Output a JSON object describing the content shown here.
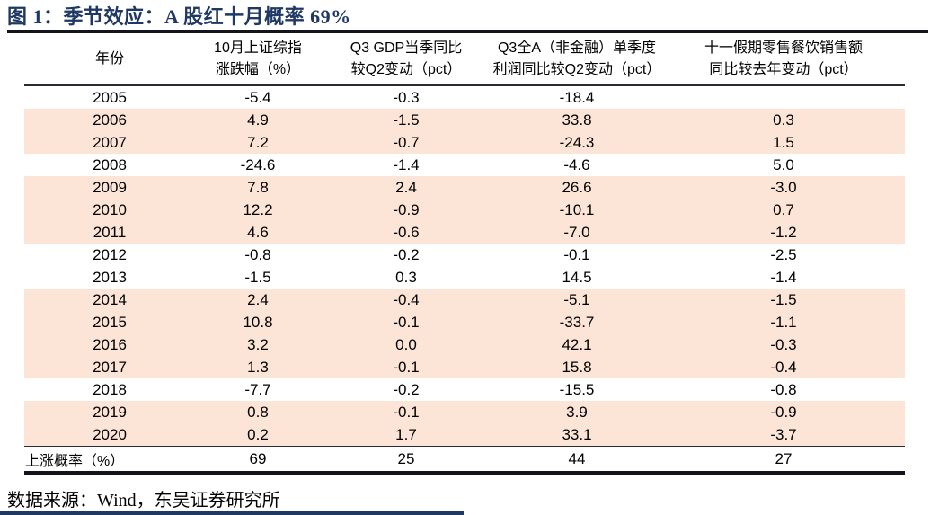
{
  "colors": {
    "navy": "#1f3864",
    "rule_dark": "#14141c",
    "row_highlight": "#fce4d6"
  },
  "chart_data": {
    "type": "table",
    "title": "图 1：季节效应：A 股红十月概率 69%",
    "source_note": "数据来源：Wind，东吴证券研究所",
    "columns": [
      {
        "line1": "年份",
        "line2": ""
      },
      {
        "line1": "10月上证综指",
        "line2": "涨跌幅（%）"
      },
      {
        "line1": "Q3 GDP当季同比",
        "line2": "较Q2变动（pct）"
      },
      {
        "line1": "Q3全A（非金融）单季度",
        "line2": "利润同比较Q2变动（pct）"
      },
      {
        "line1": "十一假期零售餐饮销售额",
        "line2": "同比较去年变动（pct）"
      }
    ],
    "rows": [
      {
        "year": "2005",
        "values": [
          "-5.4",
          "-0.3",
          "-18.4",
          ""
        ],
        "highlighted": false
      },
      {
        "year": "2006",
        "values": [
          "4.9",
          "-1.5",
          "33.8",
          "0.3"
        ],
        "highlighted": true
      },
      {
        "year": "2007",
        "values": [
          "7.2",
          "-0.7",
          "-24.3",
          "1.5"
        ],
        "highlighted": true
      },
      {
        "year": "2008",
        "values": [
          "-24.6",
          "-1.4",
          "-4.6",
          "5.0"
        ],
        "highlighted": false
      },
      {
        "year": "2009",
        "values": [
          "7.8",
          "2.4",
          "26.6",
          "-3.0"
        ],
        "highlighted": true
      },
      {
        "year": "2010",
        "values": [
          "12.2",
          "-0.9",
          "-10.1",
          "0.7"
        ],
        "highlighted": true
      },
      {
        "year": "2011",
        "values": [
          "4.6",
          "-0.6",
          "-7.0",
          "-1.2"
        ],
        "highlighted": true
      },
      {
        "year": "2012",
        "values": [
          "-0.8",
          "-0.2",
          "-0.1",
          "-2.5"
        ],
        "highlighted": false
      },
      {
        "year": "2013",
        "values": [
          "-1.5",
          "0.3",
          "14.5",
          "-1.4"
        ],
        "highlighted": false
      },
      {
        "year": "2014",
        "values": [
          "2.4",
          "-0.4",
          "-5.1",
          "-1.5"
        ],
        "highlighted": true
      },
      {
        "year": "2015",
        "values": [
          "10.8",
          "-0.1",
          "-33.7",
          "-1.1"
        ],
        "highlighted": true
      },
      {
        "year": "2016",
        "values": [
          "3.2",
          "0.0",
          "42.1",
          "-0.3"
        ],
        "highlighted": true
      },
      {
        "year": "2017",
        "values": [
          "1.3",
          "-0.1",
          "15.8",
          "-0.4"
        ],
        "highlighted": true
      },
      {
        "year": "2018",
        "values": [
          "-7.7",
          "-0.2",
          "-15.5",
          "-0.8"
        ],
        "highlighted": false
      },
      {
        "year": "2019",
        "values": [
          "0.8",
          "-0.1",
          "3.9",
          "-0.9"
        ],
        "highlighted": true
      },
      {
        "year": "2020",
        "values": [
          "0.2",
          "1.7",
          "33.1",
          "-3.7"
        ],
        "highlighted": true
      }
    ],
    "summary": {
      "label": "上涨概率（%）",
      "values": [
        "69",
        "25",
        "44",
        "27"
      ]
    }
  }
}
